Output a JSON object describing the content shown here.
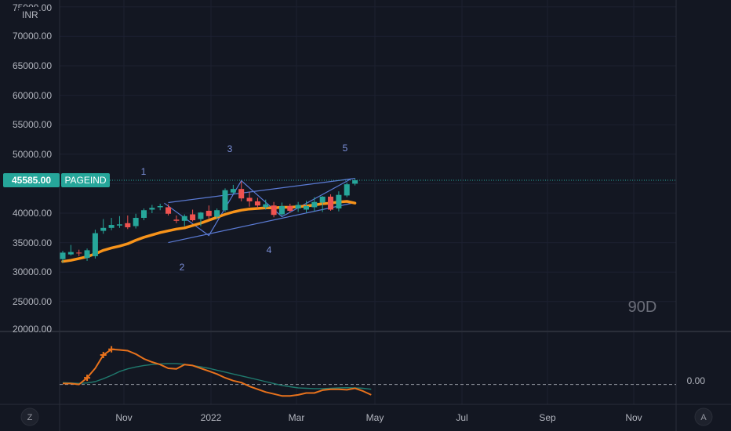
{
  "currency_label": "INR",
  "timeframe_label": "90D",
  "auto_button": "A",
  "zoom_button": "Z",
  "price_tag": "45585.00",
  "symbol_tag": "PAGEIND",
  "colors": {
    "background": "#131722",
    "up": "#26a69a",
    "down": "#ef5350",
    "moving_average": "#f7931a",
    "channel": "#5b7bd5",
    "wave_label": "#7b8fd9",
    "last_price_line": "#26a69a",
    "oscillator_fast": "#e8721c",
    "oscillator_slow": "#1f7a6e"
  },
  "chart_data": [
    {
      "type": "candlestick",
      "x_ticks": [
        "Nov",
        "2022",
        "Mar",
        "May",
        "Jul",
        "Sep",
        "Nov"
      ],
      "y_ticks": [
        "75000.00",
        "70000.00",
        "65000.00",
        "60000.00",
        "55000.00",
        "50000.00",
        "40000.00",
        "35000.00",
        "30000.00",
        "25000.00",
        "20000.00"
      ],
      "ylim": [
        19500,
        75500
      ],
      "last_price": 45585,
      "candles": [
        {
          "o": 32200,
          "h": 33600,
          "l": 31600,
          "c": 33300
        },
        {
          "o": 33000,
          "h": 34600,
          "l": 32800,
          "c": 33400
        },
        {
          "o": 33300,
          "h": 33800,
          "l": 32700,
          "c": 33200
        },
        {
          "o": 32400,
          "h": 34000,
          "l": 31900,
          "c": 33700
        },
        {
          "o": 32700,
          "h": 37200,
          "l": 32300,
          "c": 36600
        },
        {
          "o": 37000,
          "h": 39000,
          "l": 36500,
          "c": 37500
        },
        {
          "o": 37500,
          "h": 39200,
          "l": 37100,
          "c": 38000
        },
        {
          "o": 37900,
          "h": 39500,
          "l": 37500,
          "c": 38100
        },
        {
          "o": 38300,
          "h": 39600,
          "l": 37300,
          "c": 37600
        },
        {
          "o": 37800,
          "h": 39900,
          "l": 37400,
          "c": 39200
        },
        {
          "o": 39200,
          "h": 40800,
          "l": 38800,
          "c": 40500
        },
        {
          "o": 40600,
          "h": 41400,
          "l": 40000,
          "c": 40900
        },
        {
          "o": 41000,
          "h": 41600,
          "l": 40500,
          "c": 41200
        },
        {
          "o": 41000,
          "h": 41500,
          "l": 39600,
          "c": 39900
        },
        {
          "o": 38900,
          "h": 39600,
          "l": 38300,
          "c": 38700
        },
        {
          "o": 38700,
          "h": 39800,
          "l": 37800,
          "c": 39500
        },
        {
          "o": 39800,
          "h": 40600,
          "l": 38600,
          "c": 38800
        },
        {
          "o": 39000,
          "h": 40200,
          "l": 37800,
          "c": 40100
        },
        {
          "o": 40400,
          "h": 41300,
          "l": 39100,
          "c": 39500
        },
        {
          "o": 39400,
          "h": 40800,
          "l": 39000,
          "c": 40500
        },
        {
          "o": 40500,
          "h": 44200,
          "l": 40200,
          "c": 43900
        },
        {
          "o": 43500,
          "h": 44800,
          "l": 43200,
          "c": 44100
        },
        {
          "o": 44100,
          "h": 45400,
          "l": 42000,
          "c": 42500
        },
        {
          "o": 42600,
          "h": 43600,
          "l": 41100,
          "c": 42000
        },
        {
          "o": 42000,
          "h": 42600,
          "l": 40800,
          "c": 41300
        },
        {
          "o": 41000,
          "h": 42300,
          "l": 40600,
          "c": 41500
        },
        {
          "o": 41300,
          "h": 41900,
          "l": 39300,
          "c": 39700
        },
        {
          "o": 39800,
          "h": 41800,
          "l": 39500,
          "c": 41200
        },
        {
          "o": 41200,
          "h": 41600,
          "l": 40100,
          "c": 40400
        },
        {
          "o": 40800,
          "h": 41900,
          "l": 40200,
          "c": 41400
        },
        {
          "o": 40600,
          "h": 42100,
          "l": 40100,
          "c": 41200
        },
        {
          "o": 41000,
          "h": 42700,
          "l": 40300,
          "c": 41900
        },
        {
          "o": 41800,
          "h": 42900,
          "l": 40200,
          "c": 42800
        },
        {
          "o": 42800,
          "h": 43200,
          "l": 40400,
          "c": 40600
        },
        {
          "o": 40800,
          "h": 43700,
          "l": 40300,
          "c": 43100
        },
        {
          "o": 43000,
          "h": 45200,
          "l": 42700,
          "c": 44900
        },
        {
          "o": 45000,
          "h": 45900,
          "l": 44700,
          "c": 45585
        }
      ],
      "moving_average": [
        31800,
        32000,
        32300,
        32600,
        33100,
        33700,
        34100,
        34400,
        34800,
        35400,
        35900,
        36300,
        36700,
        37000,
        37300,
        37500,
        37900,
        38300,
        38800,
        39300,
        39800,
        40200,
        40500,
        40700,
        40800,
        40900,
        40900,
        41000,
        41000,
        41100,
        41200,
        41400,
        41600,
        41700,
        41900,
        42000,
        41700
      ],
      "channel": {
        "upper": [
          [
            13,
            41800
          ],
          [
            36,
            45900
          ]
        ],
        "lower": [
          [
            13,
            35000
          ],
          [
            36,
            41800
          ]
        ],
        "wave_path": [
          [
            12.5,
            41700
          ],
          [
            18,
            36200
          ],
          [
            22,
            45500
          ],
          [
            27,
            39400
          ],
          [
            35.5,
            45800
          ]
        ]
      },
      "wave_labels": [
        "1",
        "2",
        "3",
        "4",
        "5"
      ]
    },
    {
      "type": "line",
      "reference_level": 0.0,
      "reference_label": "0.00",
      "ylim": [
        -0.8,
        2.5
      ],
      "series": [
        {
          "values": [
            0.05,
            0.05,
            0.0,
            0.35,
            0.85,
            1.55,
            1.85,
            1.82,
            1.78,
            1.6,
            1.35,
            1.18,
            1.05,
            0.85,
            0.82,
            1.05,
            1.0,
            0.85,
            0.7,
            0.55,
            0.35,
            0.2,
            0.1,
            -0.1,
            -0.25,
            -0.4,
            -0.5,
            -0.6,
            -0.6,
            -0.55,
            -0.45,
            -0.45,
            -0.3,
            -0.25,
            -0.25,
            -0.28,
            -0.2,
            -0.35,
            -0.55
          ]
        },
        {
          "values": [
            0.1,
            0.08,
            0.06,
            0.08,
            0.15,
            0.3,
            0.48,
            0.68,
            0.82,
            0.92,
            1.0,
            1.05,
            1.08,
            1.1,
            1.1,
            1.06,
            1.0,
            0.93,
            0.85,
            0.75,
            0.65,
            0.55,
            0.45,
            0.35,
            0.25,
            0.15,
            0.05,
            -0.05,
            -0.12,
            -0.18,
            -0.2,
            -0.22,
            -0.22,
            -0.2,
            -0.18,
            -0.17,
            -0.18,
            -0.2,
            -0.25
          ]
        }
      ]
    }
  ]
}
